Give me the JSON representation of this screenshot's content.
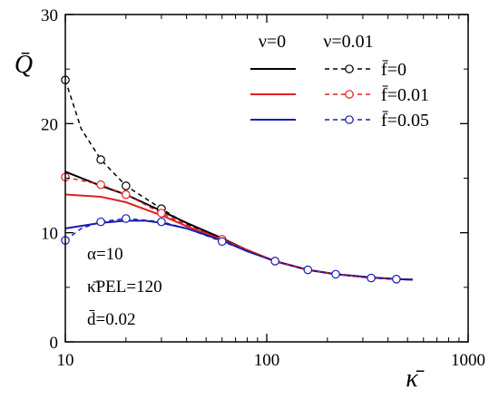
{
  "chart_data": {
    "type": "line",
    "title": "",
    "xlabel": "κ̄",
    "ylabel": "Q̄",
    "xscale": "log",
    "xlim": [
      10,
      1000
    ],
    "ylim": [
      0,
      30
    ],
    "grid": false,
    "x_ticks": [
      10,
      100,
      1000
    ],
    "x_tick_labels": [
      "10",
      "100",
      "1000"
    ],
    "y_ticks": [
      0,
      10,
      20,
      30
    ],
    "y_tick_labels": [
      "0",
      "10",
      "20",
      "30"
    ],
    "legend": {
      "placement": "top-right",
      "col_headers": [
        "ν=0",
        "ν=0.01"
      ],
      "row_labels": [
        "f̄=0",
        "f̄=0.01",
        "f̄=0.05"
      ]
    },
    "annotations": [
      "α=10",
      "κ̄PEL=120",
      "d̄=0.02"
    ],
    "series": [
      {
        "name": "ν=0, f̄=0",
        "color": "#000000",
        "dash": false,
        "markers": false,
        "x": [
          10,
          15,
          20,
          30,
          40,
          60,
          80,
          110,
          160,
          220,
          330,
          440,
          530
        ],
        "y": [
          15.6,
          14.3,
          13.5,
          12.0,
          10.9,
          9.5,
          8.4,
          7.4,
          6.6,
          6.2,
          5.9,
          5.75,
          5.7
        ]
      },
      {
        "name": "ν=0, f̄=0.01",
        "color": "#e02020",
        "dash": false,
        "markers": false,
        "x": [
          10,
          15,
          20,
          30,
          40,
          60,
          80,
          110,
          160,
          220,
          330,
          440,
          530
        ],
        "y": [
          13.5,
          13.3,
          12.8,
          11.6,
          10.6,
          9.4,
          8.4,
          7.4,
          6.6,
          6.2,
          5.9,
          5.75,
          5.7
        ]
      },
      {
        "name": "ν=0, f̄=0.05",
        "color": "#1a1ab0",
        "dash": false,
        "markers": false,
        "x": [
          10,
          15,
          20,
          25,
          30,
          40,
          60,
          80,
          110,
          160,
          220,
          330,
          440,
          530
        ],
        "y": [
          10.4,
          10.9,
          11.1,
          11.1,
          10.9,
          10.4,
          9.3,
          8.3,
          7.4,
          6.6,
          6.2,
          5.9,
          5.75,
          5.7
        ]
      },
      {
        "name": "ν=0.01, f̄=0",
        "color": "#000000",
        "dash": true,
        "markers": true,
        "x": [
          10,
          12,
          15,
          20,
          30,
          40,
          60,
          110,
          160,
          220,
          330,
          440
        ],
        "y": [
          24.0,
          19.5,
          16.7,
          14.3,
          12.2,
          10.8,
          9.4,
          7.4,
          6.6,
          6.2,
          5.85,
          5.75
        ],
        "marker_x": [
          10,
          15,
          20,
          30
        ],
        "marker_y": [
          24.0,
          16.7,
          14.3,
          12.2
        ]
      },
      {
        "name": "ν=0.01, f̄=0.01",
        "color": "#e02020",
        "dash": true,
        "markers": true,
        "x": [
          10,
          15,
          20,
          30,
          40,
          60,
          110,
          160,
          220,
          330,
          440
        ],
        "y": [
          15.1,
          14.4,
          13.5,
          11.8,
          10.7,
          9.4,
          7.4,
          6.6,
          6.2,
          5.85,
          5.75
        ],
        "marker_x": [
          10,
          15,
          20,
          30,
          60
        ],
        "marker_y": [
          15.1,
          14.4,
          13.5,
          11.8,
          9.4
        ]
      },
      {
        "name": "ν=0.01, f̄=0.05",
        "color": "#1a1ab0",
        "dash": true,
        "markers": true,
        "x": [
          10,
          12,
          15,
          20,
          30,
          40,
          60,
          110,
          160,
          220,
          330,
          440
        ],
        "y": [
          9.3,
          10.4,
          11.0,
          11.3,
          11.0,
          10.4,
          9.2,
          7.4,
          6.6,
          6.2,
          5.85,
          5.75
        ],
        "marker_x": [
          10,
          15,
          20,
          30,
          60,
          110,
          160,
          220,
          330,
          440
        ],
        "marker_y": [
          9.3,
          11.0,
          11.3,
          11.0,
          9.2,
          7.4,
          6.6,
          6.2,
          5.85,
          5.75
        ]
      }
    ]
  }
}
